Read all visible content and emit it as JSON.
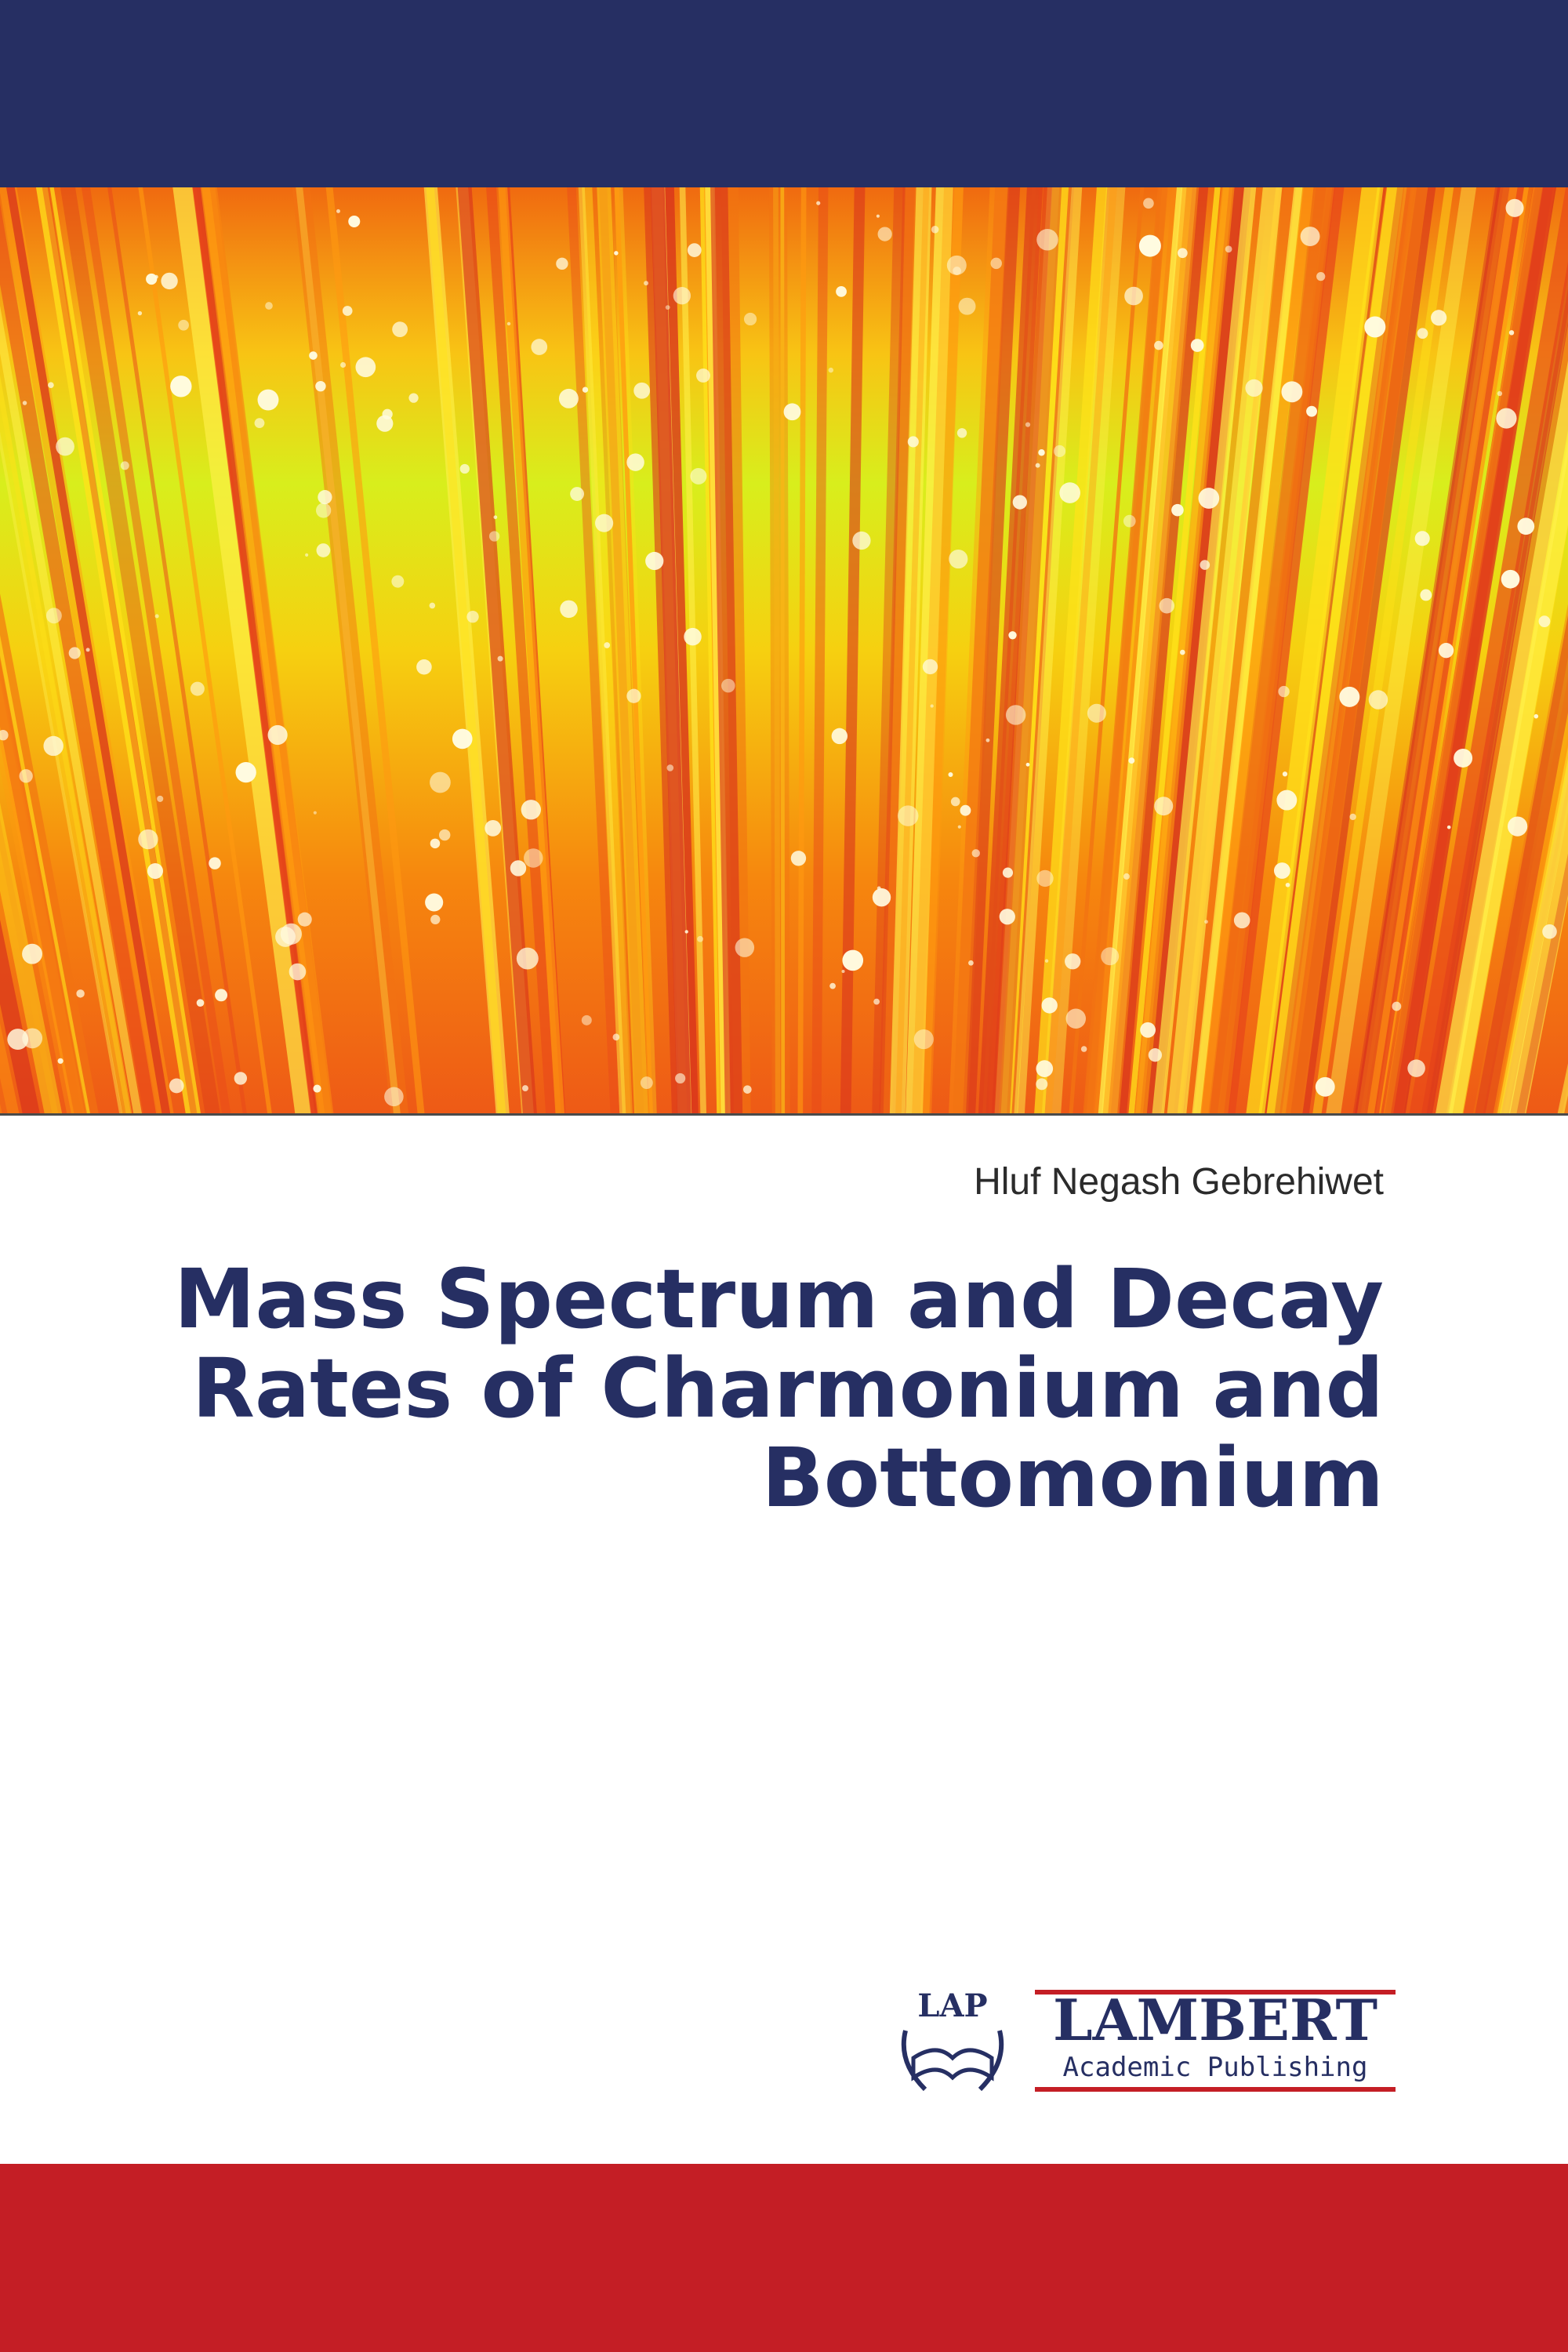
{
  "author": "Hluf Negash Gebrehiwet",
  "title": {
    "lines": [
      "Mass Spectrum and Decay",
      "Rates of Charmonium and",
      "Bottomonium"
    ]
  },
  "publisher": {
    "logo_mark": "LAP",
    "name": "LAMBERT",
    "subtitle": "Academic Publishing"
  }
}
